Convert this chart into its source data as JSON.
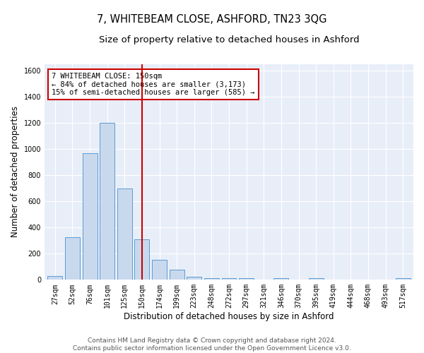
{
  "title": "7, WHITEBEAM CLOSE, ASHFORD, TN23 3QG",
  "subtitle": "Size of property relative to detached houses in Ashford",
  "xlabel": "Distribution of detached houses by size in Ashford",
  "ylabel": "Number of detached properties",
  "bar_color": "#c9d9ed",
  "bar_edge_color": "#5b9bd5",
  "background_color": "#e8eef8",
  "grid_color": "#ffffff",
  "fig_background": "#ffffff",
  "vline_color": "#cc0000",
  "vline_x": 5,
  "annotation_text": "7 WHITEBEAM CLOSE: 150sqm\n← 84% of detached houses are smaller (3,173)\n15% of semi-detached houses are larger (585) →",
  "annotation_box_color": "#ffffff",
  "annotation_box_edge_color": "#cc0000",
  "categories": [
    "27sqm",
    "52sqm",
    "76sqm",
    "101sqm",
    "125sqm",
    "150sqm",
    "174sqm",
    "199sqm",
    "223sqm",
    "248sqm",
    "272sqm",
    "297sqm",
    "321sqm",
    "346sqm",
    "370sqm",
    "395sqm",
    "419sqm",
    "444sqm",
    "468sqm",
    "493sqm",
    "517sqm"
  ],
  "values": [
    27,
    325,
    970,
    1200,
    700,
    307,
    155,
    80,
    25,
    15,
    12,
    10,
    0,
    12,
    0,
    12,
    0,
    0,
    0,
    0,
    12
  ],
  "ylim": [
    0,
    1650
  ],
  "yticks": [
    0,
    200,
    400,
    600,
    800,
    1000,
    1200,
    1400,
    1600
  ],
  "footer_text": "Contains HM Land Registry data © Crown copyright and database right 2024.\nContains public sector information licensed under the Open Government Licence v3.0.",
  "title_fontsize": 10.5,
  "subtitle_fontsize": 9.5,
  "axis_label_fontsize": 8.5,
  "tick_fontsize": 7,
  "annotation_fontsize": 7.5,
  "footer_fontsize": 6.5
}
